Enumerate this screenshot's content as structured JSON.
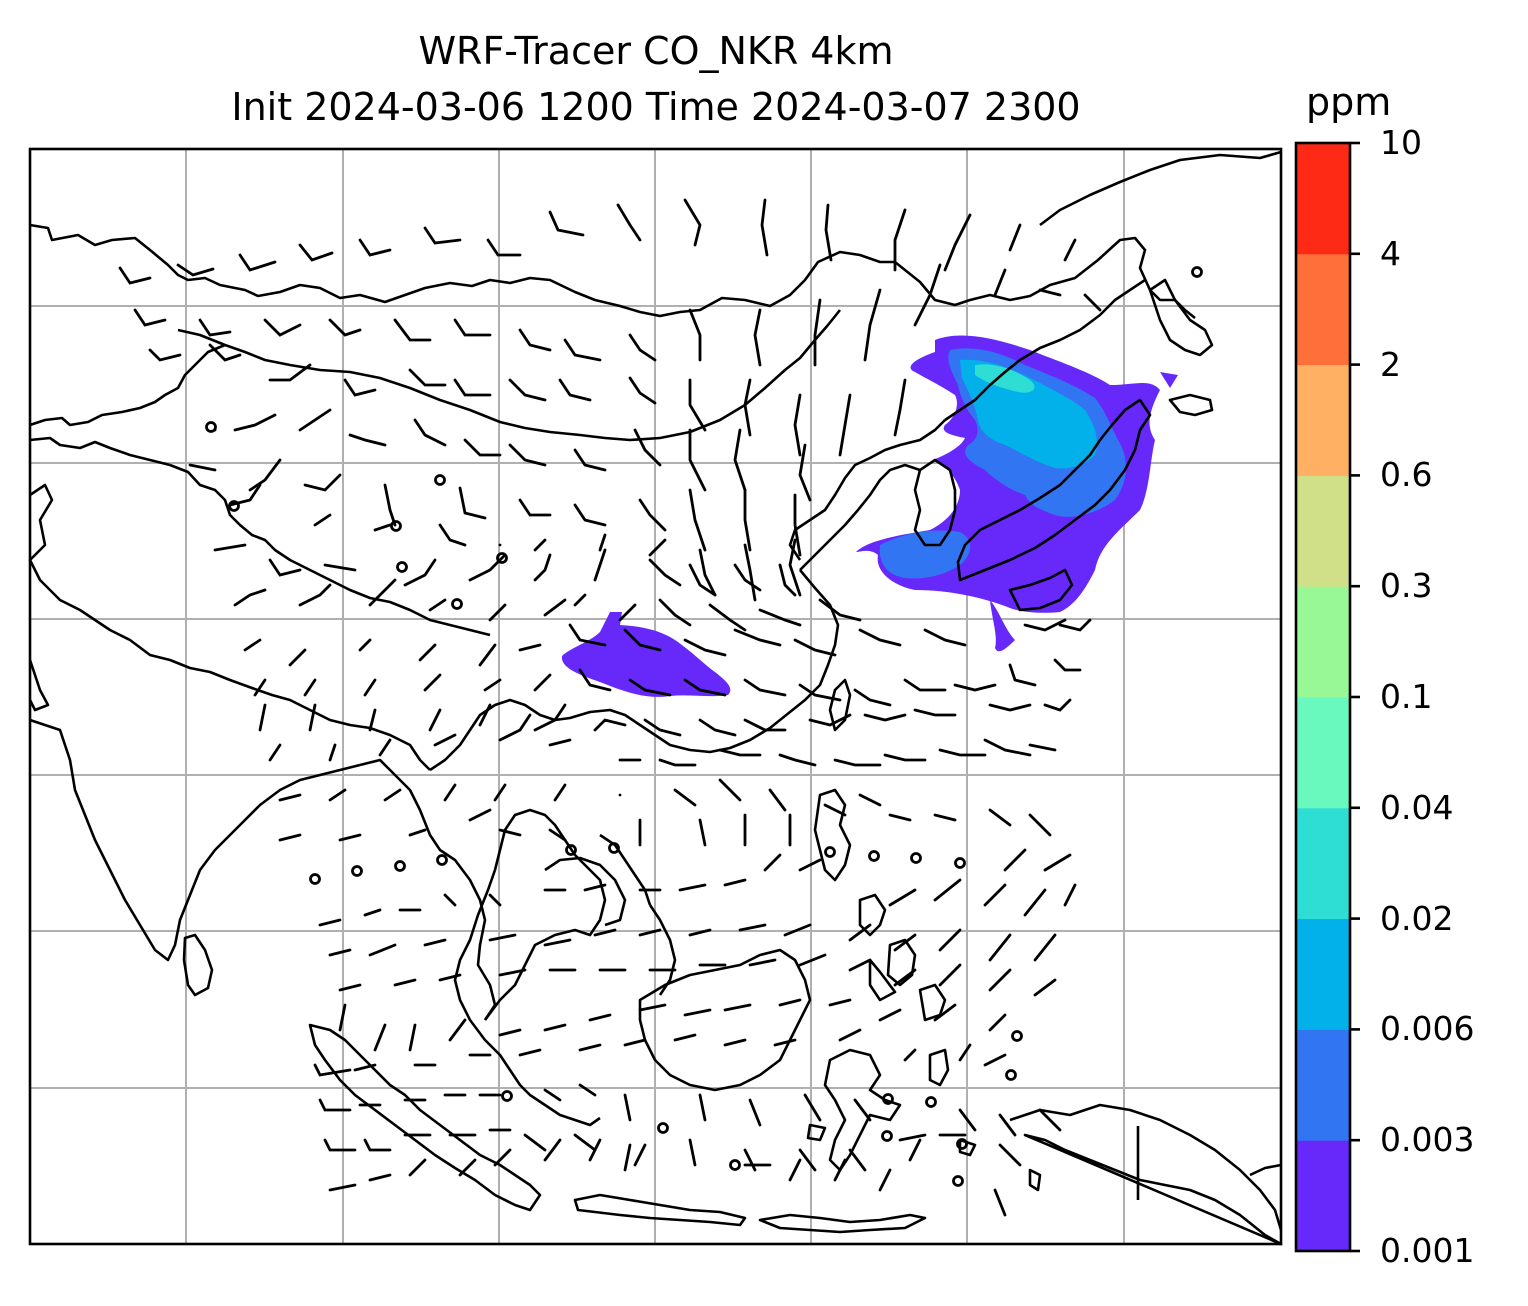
{
  "title": {
    "line1": "WRF-Tracer CO_NKR 4km",
    "line2": "Init 2024-03-06 1200 Time 2024-03-07 2300"
  },
  "colorbar": {
    "unit": "ppm",
    "levels": [
      "0.001",
      "0.003",
      "0.006",
      "0.02",
      "0.04",
      "0.1",
      "0.3",
      "0.6",
      "2",
      "4",
      "10"
    ],
    "colors": [
      "#6729FA",
      "#3275F2",
      "#02B1EA",
      "#2EDDD4",
      "#69F8BE",
      "#99F896",
      "#D0E088",
      "#FFB063",
      "#FF6F3A",
      "#FF2A16"
    ]
  },
  "map": {
    "features": [
      "coastlines",
      "country-borders",
      "lat-lon-gridlines",
      "wind-barbs",
      "tracer-concentration-shading"
    ],
    "gridline_color": "#b0b0b0"
  }
}
